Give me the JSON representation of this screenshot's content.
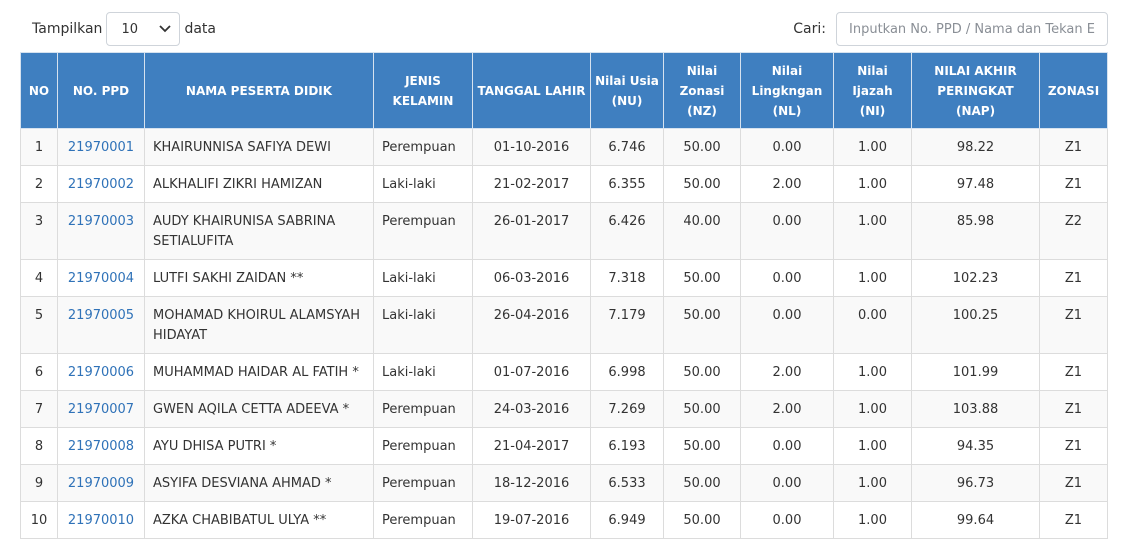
{
  "controls": {
    "show_label": "Tampilkan",
    "length_value": "10",
    "data_label": "data",
    "search_label": "Cari:",
    "search_placeholder": "Inputkan No. PPD / Nama dan Tekan Enter"
  },
  "table": {
    "headers": [
      "NO",
      "NO. PPD",
      "NAMA PESERTA DIDIK",
      "JENIS KELAMIN",
      "TANGGAL LAHIR",
      "Nilai Usia (NU)",
      "Nilai Zonasi (NZ)",
      "Nilai Lingkngan (NL)",
      "Nilai Ijazah (NI)",
      "NILAI AKHIR PERINGKAT (NAP)",
      "ZONASI"
    ],
    "rows": [
      {
        "no": "1",
        "ppd": "21970001",
        "name": "KHAIRUNNISA SAFIYA DEWI",
        "sex": "Perempuan",
        "dob": "01-10-2016",
        "nu": "6.746",
        "nz": "50.00",
        "nl": "0.00",
        "ni": "1.00",
        "nap": "98.22",
        "zone": "Z1"
      },
      {
        "no": "2",
        "ppd": "21970002",
        "name": "ALKHALIFI ZIKRI HAMIZAN",
        "sex": "Laki-laki",
        "dob": "21-02-2017",
        "nu": "6.355",
        "nz": "50.00",
        "nl": "2.00",
        "ni": "1.00",
        "nap": "97.48",
        "zone": "Z1"
      },
      {
        "no": "3",
        "ppd": "21970003",
        "name": "AUDY KHAIRUNISA SABRINA SETIALUFITA",
        "sex": "Perempuan",
        "dob": "26-01-2017",
        "nu": "6.426",
        "nz": "40.00",
        "nl": "0.00",
        "ni": "1.00",
        "nap": "85.98",
        "zone": "Z2"
      },
      {
        "no": "4",
        "ppd": "21970004",
        "name": "LUTFI SAKHI ZAIDAN **",
        "sex": "Laki-laki",
        "dob": "06-03-2016",
        "nu": "7.318",
        "nz": "50.00",
        "nl": "0.00",
        "ni": "1.00",
        "nap": "102.23",
        "zone": "Z1"
      },
      {
        "no": "5",
        "ppd": "21970005",
        "name": "MOHAMAD KHOIRUL ALAMSYAH HIDAYAT",
        "sex": "Laki-laki",
        "dob": "26-04-2016",
        "nu": "7.179",
        "nz": "50.00",
        "nl": "0.00",
        "ni": "0.00",
        "nap": "100.25",
        "zone": "Z1"
      },
      {
        "no": "6",
        "ppd": "21970006",
        "name": "MUHAMMAD HAIDAR AL FATIH *",
        "sex": "Laki-laki",
        "dob": "01-07-2016",
        "nu": "6.998",
        "nz": "50.00",
        "nl": "2.00",
        "ni": "1.00",
        "nap": "101.99",
        "zone": "Z1"
      },
      {
        "no": "7",
        "ppd": "21970007",
        "name": "GWEN AQILA CETTA ADEEVA *",
        "sex": "Perempuan",
        "dob": "24-03-2016",
        "nu": "7.269",
        "nz": "50.00",
        "nl": "2.00",
        "ni": "1.00",
        "nap": "103.88",
        "zone": "Z1"
      },
      {
        "no": "8",
        "ppd": "21970008",
        "name": "AYU DHISA PUTRI *",
        "sex": "Perempuan",
        "dob": "21-04-2017",
        "nu": "6.193",
        "nz": "50.00",
        "nl": "0.00",
        "ni": "1.00",
        "nap": "94.35",
        "zone": "Z1"
      },
      {
        "no": "9",
        "ppd": "21970009",
        "name": "ASYIFA DESVIANA AHMAD *",
        "sex": "Perempuan",
        "dob": "18-12-2016",
        "nu": "6.533",
        "nz": "50.00",
        "nl": "0.00",
        "ni": "1.00",
        "nap": "96.73",
        "zone": "Z1"
      },
      {
        "no": "10",
        "ppd": "21970010",
        "name": "AZKA CHABIBATUL ULYA **",
        "sex": "Perempuan",
        "dob": "19-07-2016",
        "nu": "6.949",
        "nz": "50.00",
        "nl": "0.00",
        "ni": "1.00",
        "nap": "99.64",
        "zone": "Z1"
      }
    ]
  },
  "colors": {
    "header_bg": "#3f7fc0",
    "link": "#2f72b8",
    "stripe": "#f9f9f9"
  }
}
